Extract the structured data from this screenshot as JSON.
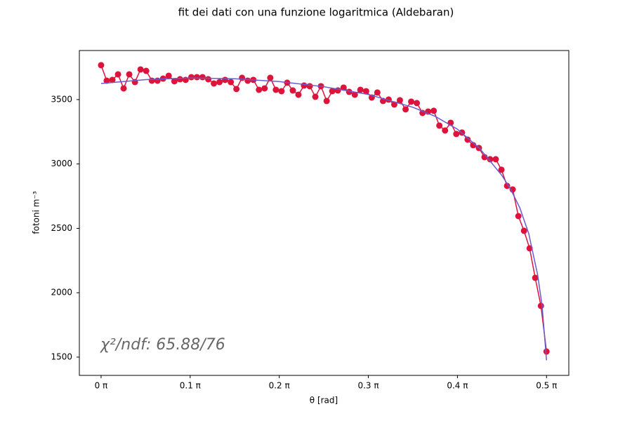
{
  "chart_data": {
    "type": "line",
    "title": "fit dei dati con una funzione logaritmica (Aldebaran)",
    "xlabel": "θ [rad]",
    "ylabel": "fotoni m⁻³",
    "annotation": "χ²/ndf: 65.88/76",
    "xlim": [
      -0.0244,
      0.525
    ],
    "ylim": [
      1358,
      3881
    ],
    "xticks": [
      {
        "value": 0,
        "label": "0 π"
      },
      {
        "value": 0.1,
        "label": "0.1 π"
      },
      {
        "value": 0.2,
        "label": "0.2 π"
      },
      {
        "value": 0.3,
        "label": "0.3 π"
      },
      {
        "value": 0.4,
        "label": "0.4 π"
      },
      {
        "value": 0.5,
        "label": "0.5 π"
      }
    ],
    "yticks": [
      1500,
      2000,
      2500,
      3000,
      3500
    ],
    "grid": false,
    "series": [
      {
        "color": "#dc143c",
        "markers": true,
        "x": [
          0,
          0.0063,
          0.0127,
          0.019,
          0.0253,
          0.0316,
          0.038,
          0.0443,
          0.0506,
          0.057,
          0.0633,
          0.0696,
          0.0759,
          0.0823,
          0.0886,
          0.0949,
          0.1013,
          0.1076,
          0.1139,
          0.1203,
          0.1266,
          0.1329,
          0.1392,
          0.1456,
          0.1519,
          0.1582,
          0.1646,
          0.1709,
          0.1772,
          0.1835,
          0.1899,
          0.1962,
          0.2025,
          0.2089,
          0.2152,
          0.2215,
          0.2278,
          0.2342,
          0.2405,
          0.2468,
          0.2532,
          0.2595,
          0.2658,
          0.2722,
          0.2785,
          0.2848,
          0.2911,
          0.2975,
          0.3038,
          0.3101,
          0.3165,
          0.3228,
          0.3291,
          0.3354,
          0.3418,
          0.3481,
          0.3544,
          0.3608,
          0.3671,
          0.3734,
          0.3797,
          0.3861,
          0.3924,
          0.3987,
          0.4051,
          0.4114,
          0.4177,
          0.4241,
          0.4304,
          0.4367,
          0.443,
          0.4494,
          0.4557,
          0.462,
          0.4684,
          0.4747,
          0.481,
          0.4873,
          0.4937,
          0.5
        ],
        "values": [
          3767,
          3647,
          3653,
          3696,
          3587,
          3696,
          3636,
          3734,
          3723,
          3647,
          3647,
          3663,
          3685,
          3642,
          3658,
          3653,
          3674,
          3674,
          3674,
          3658,
          3625,
          3636,
          3653,
          3636,
          3582,
          3669,
          3647,
          3653,
          3576,
          3587,
          3669,
          3576,
          3565,
          3631,
          3571,
          3538,
          3609,
          3604,
          3522,
          3604,
          3489,
          3565,
          3571,
          3593,
          3560,
          3538,
          3576,
          3565,
          3516,
          3555,
          3489,
          3500,
          3462,
          3495,
          3424,
          3484,
          3473,
          3396,
          3407,
          3413,
          3298,
          3260,
          3320,
          3233,
          3244,
          3189,
          3146,
          3124,
          3053,
          3037,
          3037,
          2955,
          2830,
          2802,
          2595,
          2481,
          2345,
          2116,
          1898,
          1543
        ]
      },
      {
        "color": "#6a5acd",
        "markers": false,
        "x": [
          0,
          0.05,
          0.1,
          0.15,
          0.2,
          0.25,
          0.3,
          0.35,
          0.375,
          0.4,
          0.425,
          0.45,
          0.46,
          0.47,
          0.48,
          0.49,
          0.495,
          0.5
        ],
        "values": [
          3625,
          3655,
          3668,
          3662,
          3640,
          3600,
          3540,
          3440,
          3370,
          3270,
          3120,
          2910,
          2800,
          2660,
          2460,
          2140,
          1900,
          1475
        ]
      }
    ]
  }
}
